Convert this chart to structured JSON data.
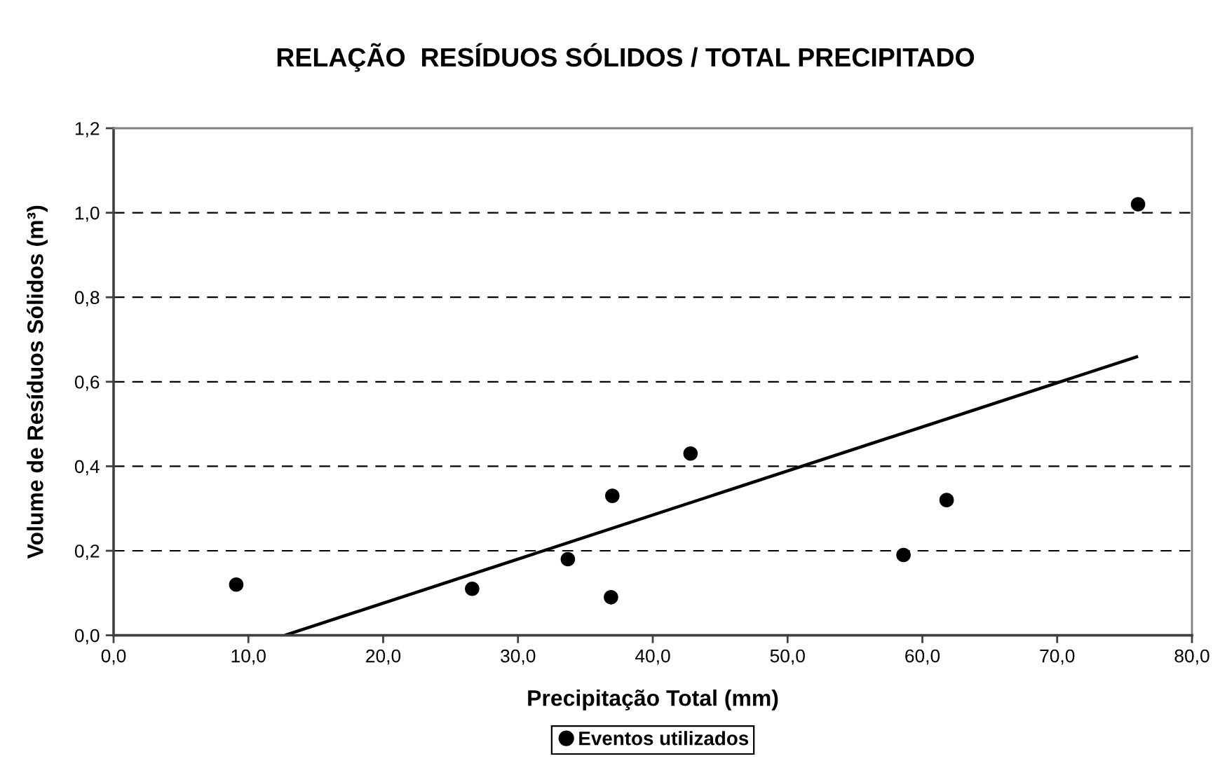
{
  "chart_data": {
    "type": "scatter",
    "title": "RELAÇÃO  RESÍDUOS SÓLIDOS / TOTAL PRECIPITADO",
    "xlabel": "Precipitação Total (mm)",
    "ylabel": "Volume de Resíduos Sólidos (m³)",
    "series": [
      {
        "name": "Eventos utilizados",
        "color": "#000000",
        "marker": "circle",
        "x": [
          9.1,
          26.6,
          33.7,
          36.9,
          37.0,
          42.8,
          58.6,
          61.8,
          76.0
        ],
        "values": [
          0.12,
          0.11,
          0.18,
          0.09,
          0.33,
          0.43,
          0.19,
          0.32,
          1.02
        ]
      },
      {
        "type": "line",
        "color": "#000000",
        "marker": "none",
        "line_style": "solid",
        "x": [
          12.7,
          76.0
        ],
        "values": [
          0.0,
          0.66
        ]
      }
    ],
    "xlim": [
      0,
      80
    ],
    "xticks": [
      {
        "value": 0,
        "label": "0,0"
      },
      {
        "value": 10,
        "label": "10,0"
      },
      {
        "value": 20,
        "label": "20,0"
      },
      {
        "value": 30,
        "label": "30,0"
      },
      {
        "value": 40,
        "label": "40,0"
      },
      {
        "value": 50,
        "label": "50,0"
      },
      {
        "value": 60,
        "label": "60,0"
      },
      {
        "value": 70,
        "label": "70,0"
      },
      {
        "value": 80,
        "label": "80,0"
      }
    ],
    "ylim": [
      0,
      1.2
    ],
    "yticks": [
      {
        "value": 0,
        "label": "0,0"
      },
      {
        "value": 0.2,
        "label": "0,2"
      },
      {
        "value": 0.4,
        "label": "0,4"
      },
      {
        "value": 0.6,
        "label": "0,6"
      },
      {
        "value": 0.8,
        "label": "0,8"
      },
      {
        "value": 1.0,
        "label": "1,0"
      },
      {
        "value": 1.2,
        "label": "1,2"
      }
    ],
    "grid": "y",
    "legend": "bottom"
  }
}
